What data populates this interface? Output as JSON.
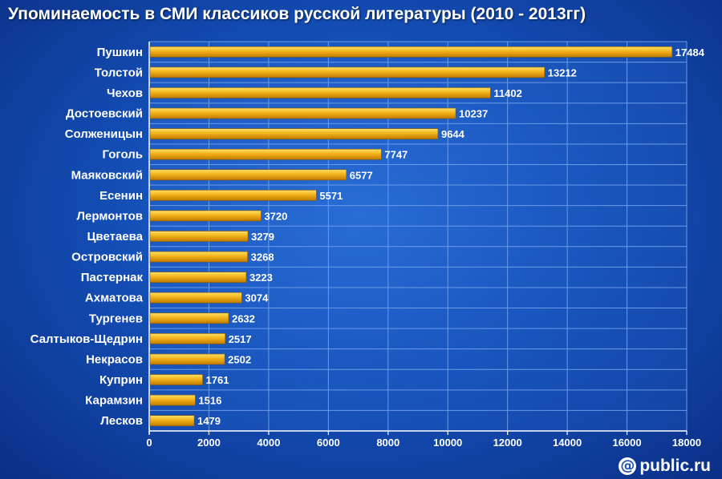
{
  "chart_data": {
    "type": "bar",
    "orientation": "horizontal",
    "title": "Упоминаемость в СМИ классиков русской литературы (2010 - 2013гг)",
    "categories": [
      "Пушкин",
      "Толстой",
      "Чехов",
      "Достоевский",
      "Солженицын",
      "Гоголь",
      "Маяковский",
      "Есенин",
      "Лермонтов",
      "Цветаева",
      "Островский",
      "Пастернак",
      "Ахматова",
      "Тургенев",
      "Салтыков-Щедрин",
      "Некрасов",
      "Куприн",
      "Карамзин",
      "Лесков"
    ],
    "values": [
      17484,
      13212,
      11402,
      10237,
      9644,
      7747,
      6577,
      5571,
      3720,
      3279,
      3268,
      3223,
      3074,
      2632,
      2517,
      2502,
      1761,
      1516,
      1479
    ],
    "xlim": [
      0,
      18000
    ],
    "xticks": [
      0,
      2000,
      4000,
      6000,
      8000,
      10000,
      12000,
      14000,
      16000,
      18000
    ],
    "grid": true,
    "data_labels": true,
    "colors": {
      "bar_light": "#ffe066",
      "bar_mid": "#f2b21a",
      "bar_dark": "#c07a00",
      "grid": "#6a9be6"
    }
  },
  "brand": {
    "icon": "at-sign-icon",
    "text": "public.ru"
  }
}
